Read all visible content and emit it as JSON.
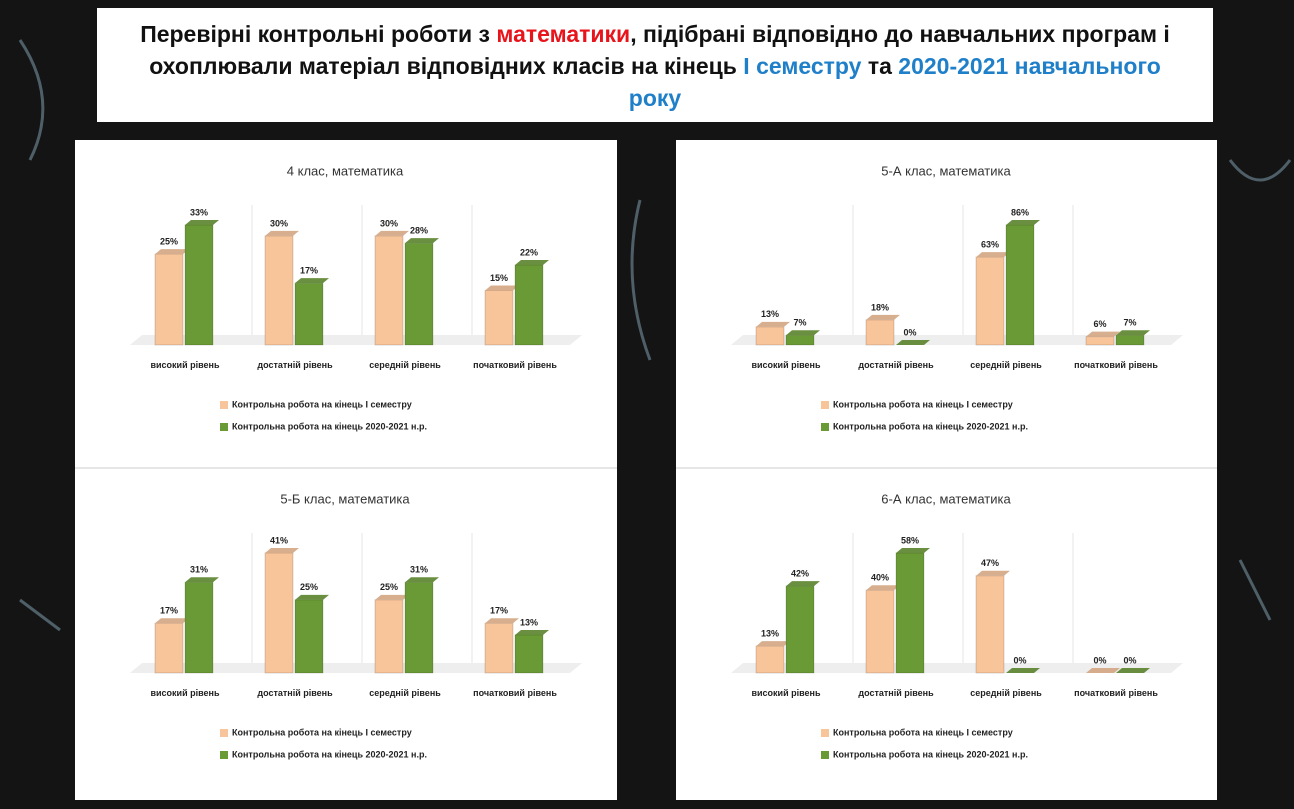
{
  "header": {
    "title_parts": [
      {
        "text": "Перевірні контрольні роботи з ",
        "color": "#111111"
      },
      {
        "text": "математики",
        "color": "#e8141c"
      },
      {
        "text": ", підібрані відповідно до навчальних програм і охоплювали матеріал відповідних класів на кінець ",
        "color": "#111111"
      },
      {
        "text": "І семестру",
        "color": "#1f7fc8"
      },
      {
        "text": " та ",
        "color": "#111111"
      },
      {
        "text": "2020-2021 навчального року",
        "color": "#1f7fc8"
      }
    ]
  },
  "chart_data": [
    {
      "type": "bar",
      "title": "4 клас, математика",
      "categories": [
        "високий рівень",
        "достатній рівень",
        "середній рівень",
        "початковий рівень"
      ],
      "series": [
        {
          "name": "Контрольна робота на кінець І семестру",
          "color": "#f8c49a",
          "values": [
            25,
            30,
            30,
            15
          ],
          "value_labels": [
            "25%",
            "30%",
            "30%",
            "15%"
          ]
        },
        {
          "name": "Контрольна робота на кінець 2020-2021 н.р.",
          "color": "#6a9a35",
          "values": [
            33,
            17,
            28,
            22
          ],
          "value_labels": [
            "33%",
            "17%",
            "28%",
            "22%"
          ]
        }
      ]
    },
    {
      "type": "bar",
      "title": "5-А клас, математика",
      "categories": [
        "високий рівень",
        "достатній рівень",
        "середній рівень",
        "початковий рівень"
      ],
      "series": [
        {
          "name": "Контрольна робота на кінець І семестру",
          "color": "#f8c49a",
          "values": [
            13,
            18,
            63,
            6
          ],
          "value_labels": [
            "13%",
            "18%",
            "63%",
            "6%"
          ]
        },
        {
          "name": "Контрольна робота на кінець 2020-2021 н.р.",
          "color": "#6a9a35",
          "values": [
            7,
            0,
            86,
            7
          ],
          "value_labels": [
            "7%",
            "0%",
            "86%",
            "7%"
          ]
        }
      ]
    },
    {
      "type": "bar",
      "title": "5-Б клас, математика",
      "categories": [
        "високий рівень",
        "достатній рівень",
        "середній рівень",
        "початковий рівень"
      ],
      "series": [
        {
          "name": "Контрольна робота на кінець І семестру",
          "color": "#f8c49a",
          "values": [
            17,
            41,
            25,
            17
          ],
          "value_labels": [
            "17%",
            "41%",
            "25%",
            "17%"
          ]
        },
        {
          "name": "Контрольна робота на кінець 2020-2021 н.р.",
          "color": "#6a9a35",
          "values": [
            31,
            25,
            31,
            13
          ],
          "value_labels": [
            "31%",
            "25%",
            "31%",
            "13%"
          ]
        }
      ]
    },
    {
      "type": "bar",
      "title": "6-А клас, математика",
      "categories": [
        "високий рівень",
        "достатній рівень",
        "середній рівень",
        "початковий рівень"
      ],
      "series": [
        {
          "name": "Контрольна робота на кінець І семестру",
          "color": "#f8c49a",
          "values": [
            13,
            40,
            47,
            0
          ],
          "value_labels": [
            "13%",
            "40%",
            "47%",
            "0%"
          ]
        },
        {
          "name": "Контрольна робота на кінець 2020-2021 н.р.",
          "color": "#6a9a35",
          "values": [
            42,
            58,
            0,
            0
          ],
          "value_labels": [
            "42%",
            "58%",
            "0%",
            "0%"
          ]
        }
      ]
    }
  ]
}
